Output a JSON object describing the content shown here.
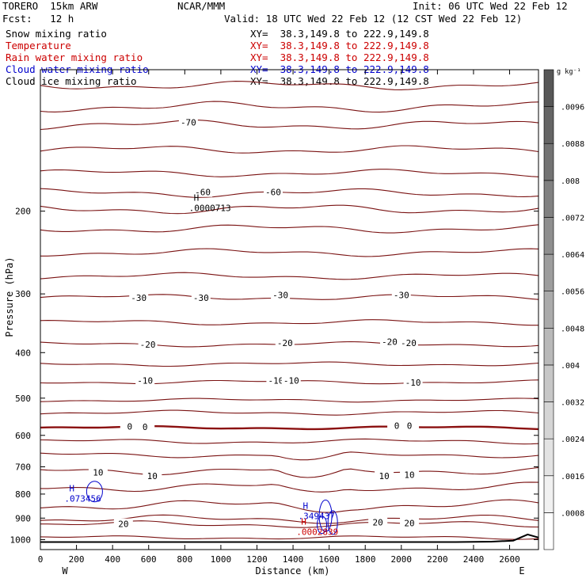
{
  "header": {
    "model": "TORERO  15km ARW",
    "center": "NCAR/MMM",
    "init": "Init: 06 UTC Wed 22 Feb 12",
    "fcst": "Fcst:   12 h",
    "valid": "Valid: 18 UTC Wed 22 Feb 12 (12 CST Wed 22 Feb 12)"
  },
  "fields": [
    {
      "name": "Snow mixing ratio",
      "xy": "XY=  38.3,149.8 to 222.9,149.8",
      "color": "#000000"
    },
    {
      "name": "Temperature",
      "xy": "XY=  38.3,149.8 to 222.9,149.8",
      "color": "#cc0000"
    },
    {
      "name": "Rain water mixing ratio",
      "xy": "XY=  38.3,149.8 to 222.9,149.8",
      "color": "#cc0000"
    },
    {
      "name": "Cloud water mixing ratio",
      "xy": "XY=  38.3,149.8 to 222.9,149.8",
      "color": "#0000cc"
    },
    {
      "name": "Cloud ice mixing ratio",
      "xy": "XY=  38.3,149.8 to 222.9,149.8",
      "color": "#000000"
    }
  ],
  "chart_data": {
    "type": "cross-section contour",
    "xlabel": "Distance (km)",
    "ylabel": "Pressure (hPa)",
    "xlim": [
      0,
      2760
    ],
    "ylim": [
      1050,
      100
    ],
    "y_scale": "log",
    "x_ticks": [
      0,
      200,
      400,
      600,
      800,
      1000,
      1200,
      1400,
      1600,
      1800,
      2000,
      2200,
      2400,
      2600
    ],
    "y_ticks": [
      200,
      300,
      400,
      500,
      600,
      700,
      800,
      900,
      1000
    ],
    "end_labels": {
      "left": "W",
      "right": "E"
    },
    "isotherm_colors": {
      "normal": "#7a1212",
      "zero": "#8b1010"
    },
    "isotherm_labels": [
      {
        "label": "-70",
        "x": 820,
        "p": 130
      },
      {
        "label": "-60",
        "x": 900,
        "p": 183
      },
      {
        "label": "-60",
        "x": 1290,
        "p": 183
      },
      {
        "label": "-30",
        "x": 545,
        "p": 307
      },
      {
        "label": "-30",
        "x": 890,
        "p": 307
      },
      {
        "label": "-30",
        "x": 1330,
        "p": 303
      },
      {
        "label": "-30",
        "x": 2000,
        "p": 303
      },
      {
        "label": "-20",
        "x": 595,
        "p": 386
      },
      {
        "label": "-20",
        "x": 1355,
        "p": 383
      },
      {
        "label": "-20",
        "x": 1935,
        "p": 381
      },
      {
        "label": "-20",
        "x": 2040,
        "p": 383
      },
      {
        "label": "-10",
        "x": 580,
        "p": 460
      },
      {
        "label": "-10",
        "x": 1305,
        "p": 460
      },
      {
        "label": "-10",
        "x": 1390,
        "p": 460
      },
      {
        "label": "-10",
        "x": 2065,
        "p": 465
      },
      {
        "label": "0",
        "x": 495,
        "p": 576
      },
      {
        "label": "0",
        "x": 580,
        "p": 578
      },
      {
        "label": "0",
        "x": 1975,
        "p": 574
      },
      {
        "label": "0",
        "x": 2045,
        "p": 574
      },
      {
        "label": "10",
        "x": 320,
        "p": 722
      },
      {
        "label": "10",
        "x": 620,
        "p": 735
      },
      {
        "label": "10",
        "x": 1905,
        "p": 735
      },
      {
        "label": "10",
        "x": 2045,
        "p": 730
      },
      {
        "label": "20",
        "x": 460,
        "p": 930
      },
      {
        "label": "20",
        "x": 1870,
        "p": 922
      },
      {
        "label": "20",
        "x": 2045,
        "p": 925
      }
    ],
    "extrema": [
      {
        "label": "H",
        "value": ".0000713",
        "x": 955,
        "p": 190,
        "color": "#000000"
      },
      {
        "label": "H",
        "value": ".073456",
        "x": 265,
        "p": 790,
        "color": "#0000cc"
      },
      {
        "label": "H",
        "value": ".349437",
        "x": 1560,
        "p": 860,
        "color": "#0000cc"
      },
      {
        "label": "H",
        "value": ".0002839",
        "x": 1550,
        "p": 930,
        "color": "#cc0000"
      }
    ],
    "colorbar": {
      "unit": "g kg⁻¹",
      "levels": [
        ".0008",
        ".0016",
        ".0024",
        ".0032",
        ".004",
        ".0048",
        ".0056",
        ".0064",
        ".0072",
        ".008",
        ".0088",
        ".0096"
      ]
    }
  }
}
